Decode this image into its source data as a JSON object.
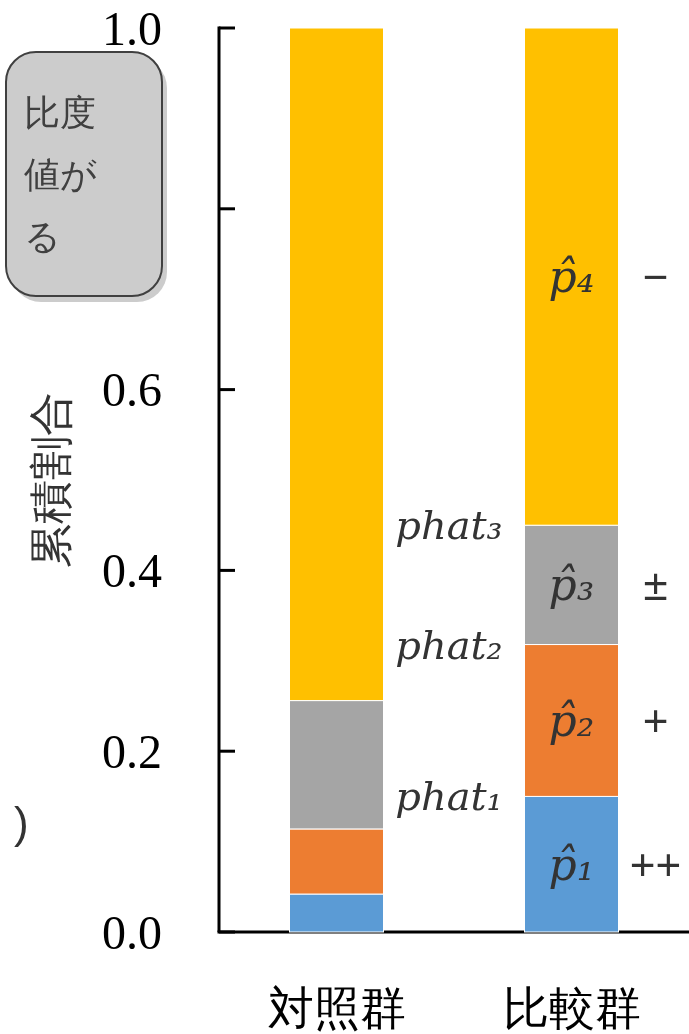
{
  "chart_data": {
    "type": "bar",
    "stacked": true,
    "ylabel": "累積割合",
    "categories": [
      "対照群",
      "比較群"
    ],
    "series": [
      {
        "name": "++",
        "color": "#5b9bd5",
        "values": [
          0.042,
          0.15
        ],
        "value_labels": [
          null,
          "p̂₁"
        ]
      },
      {
        "name": "+",
        "color": "#ed7d31",
        "values": [
          0.072,
          0.168
        ],
        "value_labels": [
          null,
          "p̂₂"
        ]
      },
      {
        "name": "±",
        "color": "#a5a5a5",
        "values": [
          0.142,
          0.132
        ],
        "value_labels": [
          null,
          "p̂₃"
        ]
      },
      {
        "name": "−",
        "color": "#ffc000",
        "values": [
          0.744,
          0.55
        ],
        "value_labels": [
          null,
          "p̂₄"
        ]
      }
    ],
    "ylim": [
      0,
      1
    ],
    "yticks": [
      {
        "value": 0,
        "label": "0.0"
      },
      0.2,
      0.4,
      0.6,
      {
        "value": 0.8,
        "label": null
      },
      {
        "value": 1,
        "label": "1.0"
      }
    ],
    "annotations": [
      "phat₁",
      "phat₂",
      "phat₃",
      "比度値がる",
      ")"
    ]
  }
}
